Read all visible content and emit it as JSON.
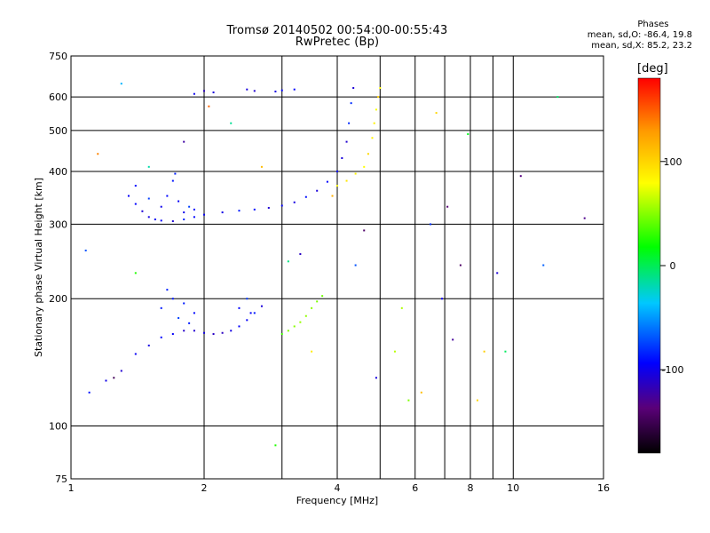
{
  "header": {
    "title_line1": "Tromsø 20140502 00:54:00-00:55:43",
    "title_line2": "RwPretec (Bp)"
  },
  "stats": {
    "heading": "Phases",
    "line_o": "mean, sd,O: -86.4, 19.8",
    "line_x": "mean, sd,X:  85.2, 23.2"
  },
  "colorbar": {
    "unit": "[deg]",
    "ticks": [
      {
        "value": 100,
        "label": "100"
      },
      {
        "value": 0,
        "label": "0"
      },
      {
        "value": -100,
        "label": "-100"
      }
    ],
    "range": [
      -180,
      180
    ]
  },
  "chart_data": {
    "type": "scatter",
    "xlabel": "Frequency [MHz]",
    "ylabel": "Stationary phase Virtual Height [km]",
    "xscale": "log",
    "yscale": "log",
    "xlim": [
      1,
      16
    ],
    "ylim": [
      75,
      750
    ],
    "xticks": [
      1,
      2,
      4,
      6,
      8,
      10,
      16
    ],
    "xtick_labels": [
      "1",
      "2",
      "4",
      "6",
      "8",
      "10",
      "16"
    ],
    "x_minor_gridlines": [
      3,
      5,
      7,
      9
    ],
    "yticks": [
      75,
      100,
      200,
      300,
      400,
      500,
      600,
      750
    ],
    "ytick_labels": [
      "75",
      "100",
      "200",
      "300",
      "400",
      "500",
      "600",
      "750"
    ],
    "grid": true,
    "colormap": "rainbow (black → purple → blue → cyan → green → yellow → orange → red)",
    "color_by": "phase [deg]",
    "traces": [
      {
        "label_hint": "O-mode F trace",
        "phase": -95,
        "points": [
          [
            1.35,
            350
          ],
          [
            1.4,
            335
          ],
          [
            1.45,
            322
          ],
          [
            1.5,
            312
          ],
          [
            1.55,
            308
          ],
          [
            1.6,
            306
          ],
          [
            1.7,
            305
          ],
          [
            1.8,
            308
          ],
          [
            1.9,
            312
          ],
          [
            2.0,
            316
          ],
          [
            2.2,
            320
          ],
          [
            2.4,
            323
          ],
          [
            2.6,
            325
          ],
          [
            2.8,
            328
          ],
          [
            3.0,
            332
          ],
          [
            3.2,
            338
          ],
          [
            3.4,
            348
          ],
          [
            3.6,
            360
          ],
          [
            3.8,
            378
          ],
          [
            4.0,
            400
          ],
          [
            4.1,
            430
          ],
          [
            4.2,
            470
          ],
          [
            4.25,
            520
          ],
          [
            4.3,
            580
          ],
          [
            4.35,
            630
          ]
        ]
      },
      {
        "label_hint": "F upper cusp",
        "phase": -90,
        "points": [
          [
            1.4,
            370
          ],
          [
            1.5,
            345
          ],
          [
            1.6,
            330
          ],
          [
            1.65,
            350
          ],
          [
            1.7,
            380
          ],
          [
            1.72,
            395
          ],
          [
            1.75,
            340
          ],
          [
            1.8,
            320
          ],
          [
            1.85,
            330
          ],
          [
            1.9,
            325
          ]
        ]
      },
      {
        "label_hint": "X-mode F trace",
        "phase": 90,
        "points": [
          [
            4.0,
            370
          ],
          [
            4.2,
            380
          ],
          [
            4.4,
            395
          ],
          [
            4.6,
            410
          ],
          [
            4.7,
            440
          ],
          [
            4.8,
            480
          ],
          [
            4.85,
            520
          ],
          [
            4.9,
            560
          ],
          [
            4.95,
            600
          ],
          [
            5.0,
            630
          ]
        ]
      },
      {
        "label_hint": "O-mode E/F1 trace",
        "phase": -100,
        "points": [
          [
            1.1,
            120
          ],
          [
            1.2,
            128
          ],
          [
            1.3,
            135
          ],
          [
            1.4,
            148
          ],
          [
            1.5,
            155
          ],
          [
            1.6,
            162
          ],
          [
            1.7,
            165
          ],
          [
            1.8,
            168
          ],
          [
            1.9,
            168
          ],
          [
            2.0,
            166
          ],
          [
            2.1,
            165
          ],
          [
            2.2,
            166
          ],
          [
            2.3,
            168
          ],
          [
            2.4,
            172
          ],
          [
            2.5,
            178
          ],
          [
            2.6,
            185
          ],
          [
            2.7,
            192
          ]
        ]
      },
      {
        "label_hint": "F1 cusp",
        "phase": -85,
        "points": [
          [
            1.6,
            190
          ],
          [
            1.65,
            210
          ],
          [
            1.7,
            200
          ],
          [
            1.75,
            180
          ],
          [
            1.8,
            195
          ],
          [
            1.85,
            175
          ],
          [
            1.9,
            185
          ],
          [
            2.4,
            190
          ],
          [
            2.5,
            200
          ],
          [
            2.55,
            185
          ]
        ]
      },
      {
        "label_hint": "X-mode E/F1 trace",
        "phase": 40,
        "points": [
          [
            3.0,
            165
          ],
          [
            3.1,
            168
          ],
          [
            3.2,
            172
          ],
          [
            3.3,
            176
          ],
          [
            3.4,
            182
          ],
          [
            3.5,
            190
          ],
          [
            3.6,
            197
          ],
          [
            3.7,
            203
          ]
        ]
      },
      {
        "label_hint": "top row",
        "phase": -100,
        "points": [
          [
            1.9,
            610
          ],
          [
            2.0,
            620
          ],
          [
            2.1,
            615
          ],
          [
            2.5,
            625
          ],
          [
            2.6,
            620
          ],
          [
            2.9,
            618
          ],
          [
            3.0,
            622
          ],
          [
            3.2,
            625
          ]
        ]
      },
      {
        "label_hint": "noise",
        "phase": 0,
        "points": [
          [
            1.08,
            260
          ],
          [
            1.15,
            440
          ],
          [
            1.25,
            130
          ],
          [
            1.3,
            645
          ],
          [
            1.4,
            230
          ],
          [
            1.5,
            410
          ],
          [
            1.8,
            470
          ],
          [
            2.05,
            570
          ],
          [
            2.3,
            520
          ],
          [
            2.7,
            410
          ],
          [
            2.9,
            90
          ],
          [
            3.1,
            245
          ],
          [
            3.3,
            255
          ],
          [
            3.5,
            150
          ],
          [
            3.9,
            350
          ],
          [
            4.4,
            240
          ],
          [
            4.6,
            290
          ],
          [
            4.9,
            130
          ],
          [
            5.4,
            150
          ],
          [
            5.6,
            190
          ],
          [
            5.8,
            115
          ],
          [
            6.2,
            120
          ],
          [
            6.5,
            300
          ],
          [
            6.7,
            550
          ],
          [
            6.9,
            200
          ],
          [
            7.1,
            330
          ],
          [
            7.3,
            160
          ],
          [
            7.6,
            240
          ],
          [
            7.9,
            490
          ],
          [
            8.3,
            115
          ],
          [
            8.6,
            150
          ],
          [
            9.2,
            230
          ],
          [
            9.6,
            150
          ],
          [
            10.4,
            390
          ],
          [
            11.7,
            240
          ],
          [
            12.6,
            600
          ],
          [
            14.5,
            310
          ]
        ]
      }
    ]
  }
}
